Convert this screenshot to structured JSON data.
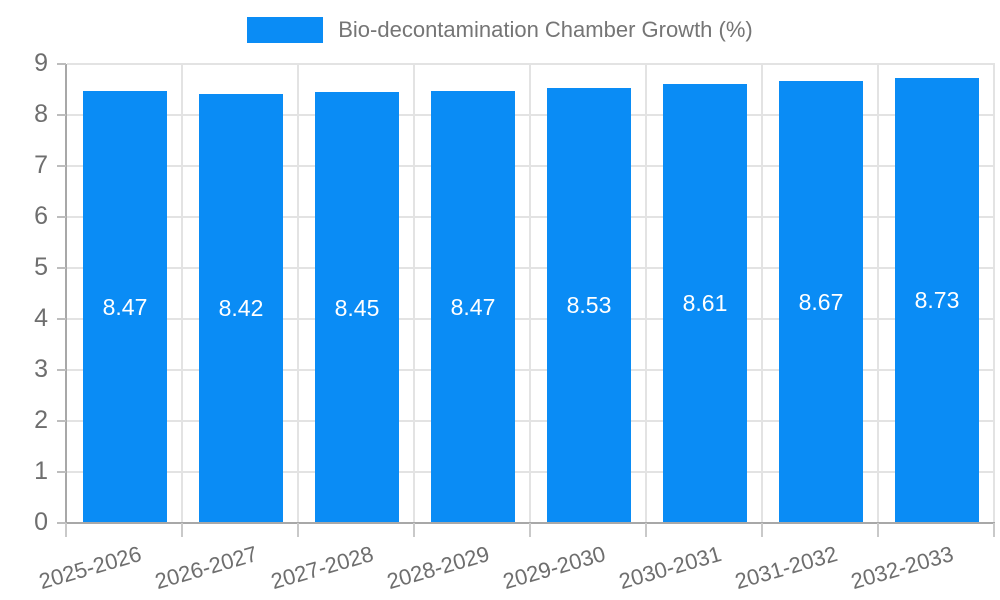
{
  "legend": {
    "label": "Bio-decontamination Chamber Growth (%)"
  },
  "chart_data": {
    "type": "bar",
    "title": "Bio-decontamination Chamber Growth (%)",
    "categories": [
      "2025-2026",
      "2026-2027",
      "2027-2028",
      "2028-2029",
      "2029-2030",
      "2030-2031",
      "2031-2032",
      "2032-2033"
    ],
    "values": [
      8.47,
      8.42,
      8.45,
      8.47,
      8.53,
      8.61,
      8.67,
      8.73
    ],
    "value_labels": [
      "8.47",
      "8.42",
      "8.45",
      "8.47",
      "8.53",
      "8.61",
      "8.67",
      "8.73"
    ],
    "xlabel": "",
    "ylabel": "",
    "ylim": [
      0,
      9
    ],
    "ytick_step": 1,
    "yticks": [
      "0",
      "1",
      "2",
      "3",
      "4",
      "5",
      "6",
      "7",
      "8",
      "9"
    ],
    "grid": true,
    "legend_position": "top"
  },
  "colors": {
    "bar": "#0a8cf5",
    "legend_text": "#757575",
    "axis_text": "#6e6e6e",
    "grid_line": "#e3e3e3",
    "axis_line": "#a8a8a8",
    "value_text": "#ffffff",
    "background": "#ffffff"
  }
}
